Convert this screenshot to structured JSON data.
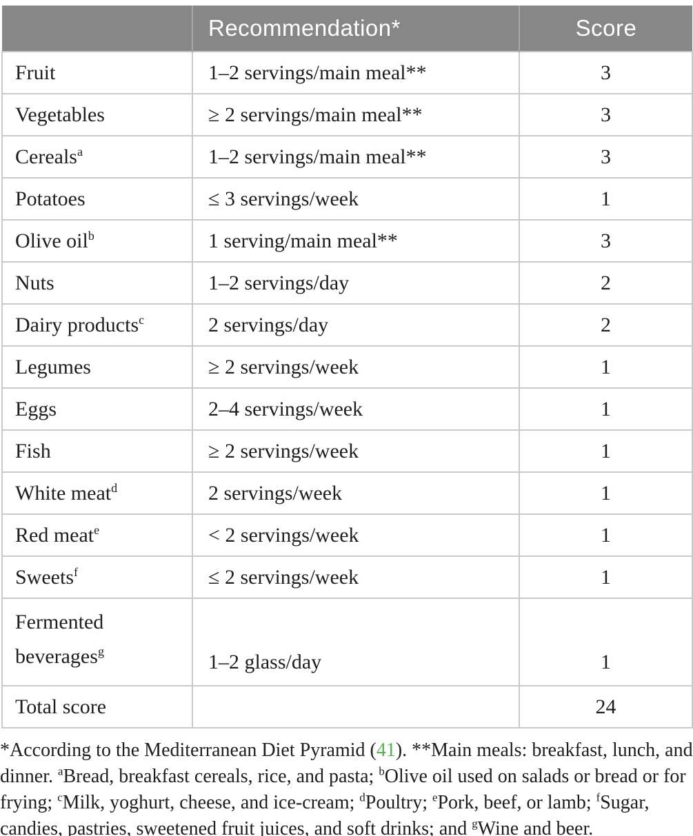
{
  "colors": {
    "header_bg": "#878787",
    "header_text": "#ffffff",
    "border": "#c9c9c9",
    "body_text": "#1d1d1d",
    "citation_green": "#55b255"
  },
  "table": {
    "header": {
      "empty": "",
      "recommendation": "Recommendation*",
      "score": "Score"
    },
    "rows": [
      {
        "label": "Fruit",
        "sup": "",
        "rec": "1–2 servings/main meal**",
        "score": "3"
      },
      {
        "label": "Vegetables",
        "sup": "",
        "rec": "≥ 2 servings/main meal**",
        "score": "3"
      },
      {
        "label": "Cereals",
        "sup": "a",
        "rec": "1–2 servings/main meal**",
        "score": "3"
      },
      {
        "label": "Potatoes",
        "sup": "",
        "rec": "≤ 3 servings/week",
        "score": "1"
      },
      {
        "label": "Olive oil",
        "sup": "b",
        "rec": "1 serving/main meal**",
        "score": "3"
      },
      {
        "label": "Nuts",
        "sup": "",
        "rec": "1–2 servings/day",
        "score": "2"
      },
      {
        "label": "Dairy products",
        "sup": "c",
        "rec": "2 servings/day",
        "score": "2"
      },
      {
        "label": "Legumes",
        "sup": "",
        "rec": "≥ 2 servings/week",
        "score": "1"
      },
      {
        "label": "Eggs",
        "sup": "",
        "rec": "2–4 servings/week",
        "score": "1"
      },
      {
        "label": "Fish",
        "sup": "",
        "rec": "≥ 2 servings/week",
        "score": "1"
      },
      {
        "label": "White meat",
        "sup": "d",
        "rec": "2 servings/week",
        "score": "1"
      },
      {
        "label": "Red meat",
        "sup": "e",
        "rec": "< 2 servings/week",
        "score": "1"
      },
      {
        "label": "Sweets",
        "sup": "f",
        "rec": "≤ 2 servings/week",
        "score": "1"
      },
      {
        "label": "Fermented beverages",
        "label_lines": [
          "Fermented",
          "beverages"
        ],
        "sup": "g",
        "rec": "1–2 glass/day",
        "score": "1",
        "tall": true
      },
      {
        "label": "Total score",
        "sup": "",
        "rec": "",
        "score": "24"
      }
    ]
  },
  "footnote": {
    "segments": [
      {
        "t": "*According to the Mediterranean Diet Pyramid ("
      },
      {
        "t": "41",
        "style": "green"
      },
      {
        "t": "). **Main meals: breakfast, lunch, and dinner. "
      },
      {
        "t": "a",
        "style": "sup"
      },
      {
        "t": "Bread, breakfast cereals, rice, and pasta; "
      },
      {
        "t": "b",
        "style": "sup"
      },
      {
        "t": "Olive oil used on salads or bread or for frying; "
      },
      {
        "t": "c",
        "style": "sup"
      },
      {
        "t": "Milk, yoghurt, cheese, and ice-cream; "
      },
      {
        "t": "d",
        "style": "sup"
      },
      {
        "t": "Poultry; "
      },
      {
        "t": "e",
        "style": "sup"
      },
      {
        "t": "Pork, beef, or lamb; "
      },
      {
        "t": "f",
        "style": "sup"
      },
      {
        "t": "Sugar, candies, pastries, sweetened fruit juices, and soft drinks; and "
      },
      {
        "t": "g",
        "style": "sup"
      },
      {
        "t": "Wine and beer."
      }
    ]
  }
}
